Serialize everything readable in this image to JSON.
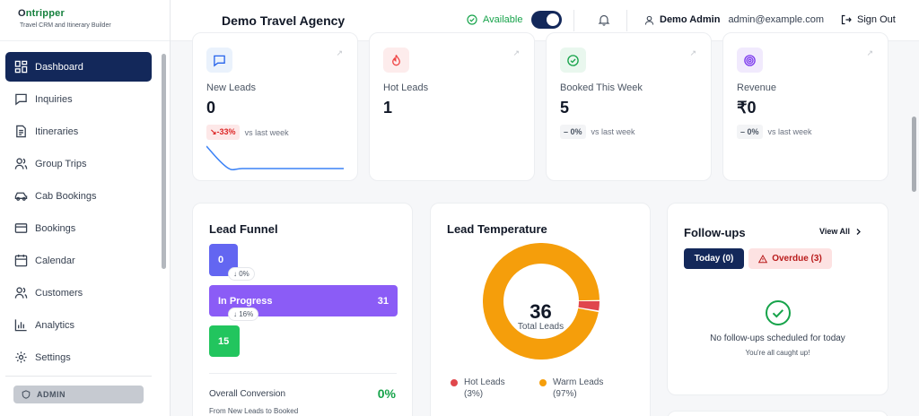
{
  "brand": {
    "name_first": "O",
    "name_rest": "ntripper",
    "tagline": "Travel CRM and Itinerary Builder"
  },
  "sidebar": {
    "items": [
      {
        "label": "Dashboard",
        "icon": "dashboard-icon",
        "active": true
      },
      {
        "label": "Inquiries",
        "icon": "message-icon"
      },
      {
        "label": "Itineraries",
        "icon": "document-icon"
      },
      {
        "label": "Group Trips",
        "icon": "users-icon"
      },
      {
        "label": "Cab Bookings",
        "icon": "car-icon"
      },
      {
        "label": "Bookings",
        "icon": "card-icon"
      },
      {
        "label": "Calendar",
        "icon": "calendar-icon"
      },
      {
        "label": "Customers",
        "icon": "customers-icon"
      },
      {
        "label": "Analytics",
        "icon": "bar-chart-icon"
      },
      {
        "label": "Settings",
        "icon": "gear-icon"
      }
    ],
    "role_badge": "ADMIN"
  },
  "header": {
    "agency": "Demo Travel Agency",
    "availability": "Available",
    "availability_on": true,
    "user_name": "Demo Admin",
    "user_email": "admin@example.com",
    "signout": "Sign Out"
  },
  "stats": [
    {
      "label": "New Leads",
      "value": "0",
      "change": "-33%",
      "change_text": "vs last week",
      "trend": "down",
      "icon_bg": "#eaf2fc",
      "icon_color": "#2563eb"
    },
    {
      "label": "Hot Leads",
      "value": "1",
      "icon_bg": "#fdecec",
      "icon_color": "#ef4444"
    },
    {
      "label": "Booked This Week",
      "value": "5",
      "change": "0%",
      "change_text": "vs last week",
      "trend": "flat",
      "icon_bg": "#e9f7ee",
      "icon_color": "#16a34a"
    },
    {
      "label": "Revenue",
      "value": "₹0",
      "change": "0%",
      "change_text": "vs last week",
      "trend": "flat",
      "icon_bg": "#f1eafd",
      "icon_color": "#7c3aed"
    }
  ],
  "funnel": {
    "title": "Lead Funnel",
    "stages": [
      {
        "value": "0",
        "color": "#6366f1"
      },
      {
        "label": "In Progress",
        "value": "31",
        "color": "#8b5cf6"
      },
      {
        "value": "15",
        "color": "#22c55e"
      }
    ],
    "drops": [
      "0%",
      "16%"
    ],
    "conversion_label": "Overall Conversion",
    "conversion_value": "0%",
    "conversion_sub": "From New Leads to Booked"
  },
  "temperature": {
    "title": "Lead Temperature",
    "total": "36",
    "total_label": "Total Leads",
    "legend": [
      {
        "label": "Hot Leads",
        "pct": "(3%)",
        "color": "#e0474c"
      },
      {
        "label": "Warm Leads",
        "pct": "(97%)",
        "color": "#f59e0b"
      }
    ]
  },
  "followups": {
    "title": "Follow-ups",
    "view_all": "View All",
    "tab_today": "Today (0)",
    "tab_overdue": "Overdue (3)",
    "empty": "No follow-ups scheduled for today",
    "empty_sub": "You're all caught up!"
  },
  "colors": {
    "navy": "#13285a",
    "green": "#16a34a",
    "warm": "#f59e0b",
    "hot": "#e0474c"
  }
}
